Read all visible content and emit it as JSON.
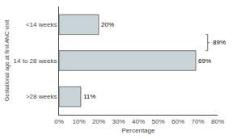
{
  "chart_data": {
    "type": "bar",
    "orientation": "horizontal",
    "categories": [
      ">28 weeks",
      "14 to 28 weeks",
      "<14 weeks"
    ],
    "values": [
      11,
      69,
      20
    ],
    "value_labels": [
      "11%",
      "69%",
      "20%"
    ],
    "data_labels": true,
    "color": "#c8d4d8",
    "xlabel": "Percentage",
    "ylabel": "Gestational age at first ANC visit",
    "xlim": [
      0,
      80
    ],
    "xticks": [
      {
        "value": 0,
        "label": "0%"
      },
      {
        "value": 10,
        "label": "10%"
      },
      {
        "value": 20,
        "label": "20%"
      },
      {
        "value": 30,
        "label": "30%"
      },
      {
        "value": 40,
        "label": "40%"
      },
      {
        "value": 50,
        "label": "50%"
      },
      {
        "value": 60,
        "label": "60%"
      },
      {
        "value": 70,
        "label": "70%"
      },
      {
        "value": 80,
        "label": "80%"
      }
    ],
    "grid": false,
    "annotations": [
      {
        "text": "89%",
        "x": 75,
        "categories": [
          "14 to 28 weeks",
          "<14 weeks"
        ]
      }
    ]
  }
}
